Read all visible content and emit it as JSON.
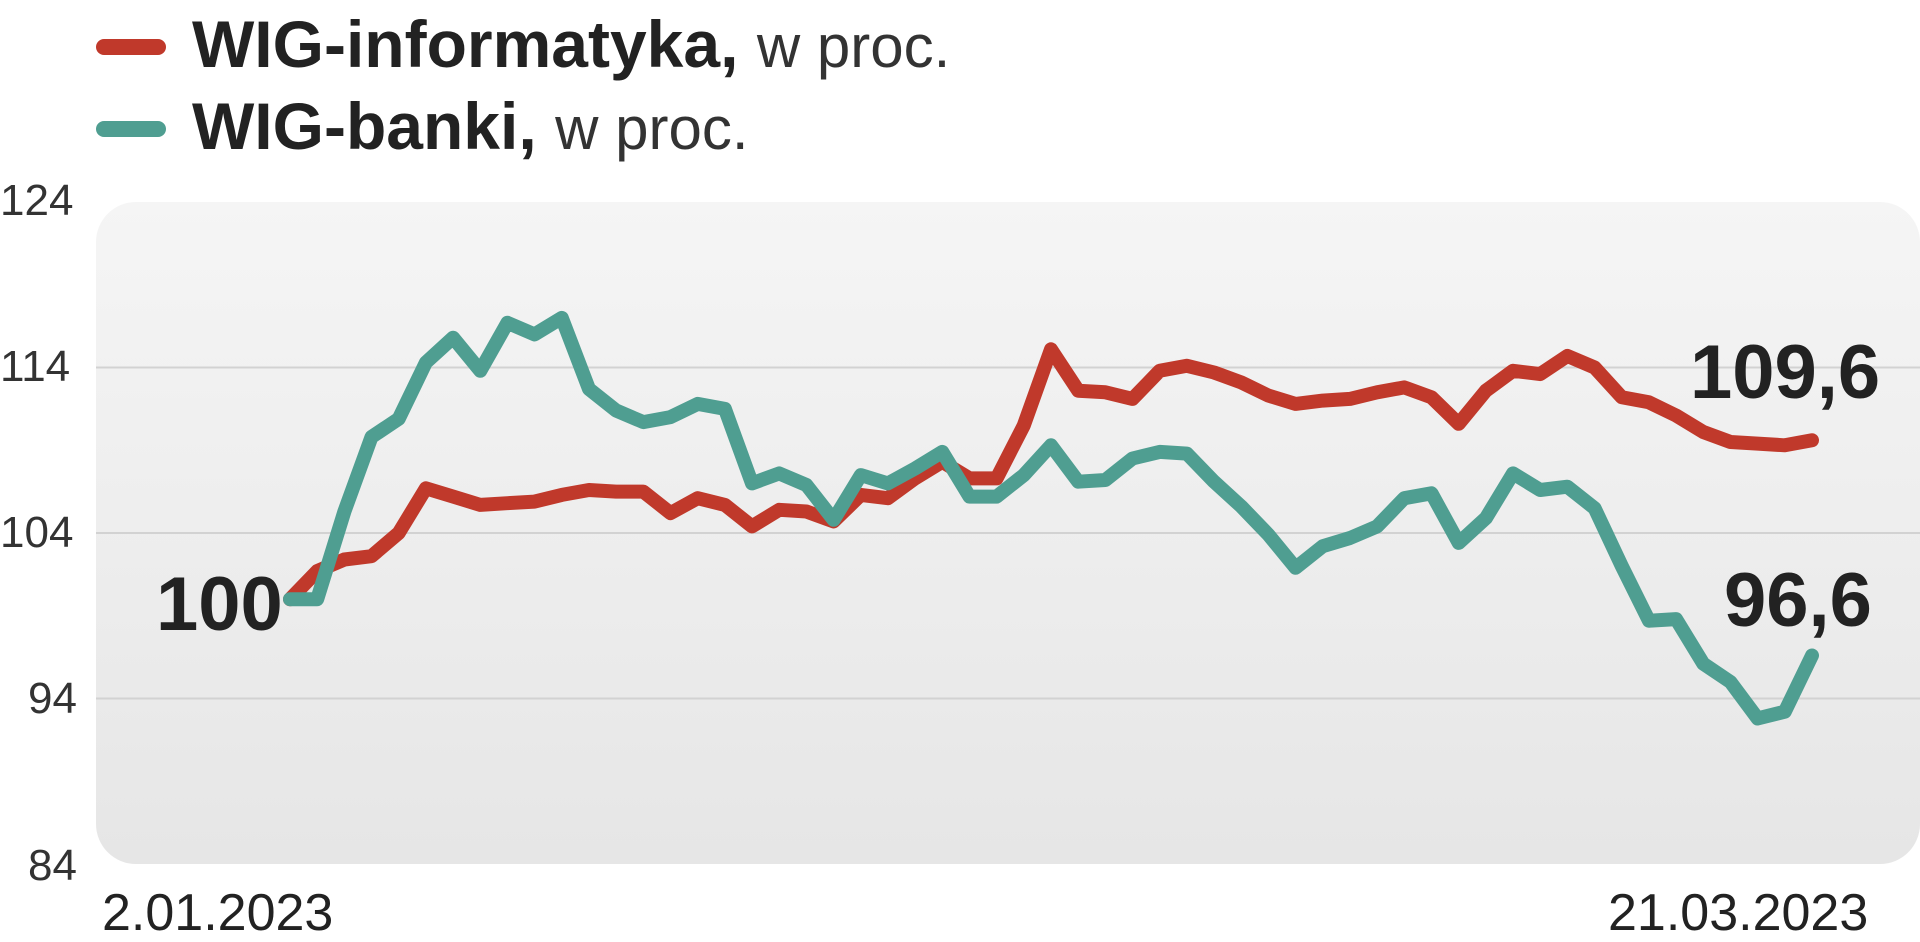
{
  "legend": [
    {
      "title": "WIG-informatyka,",
      "unit": "w proc.",
      "color": "#c0392b"
    },
    {
      "title": "WIG-banki,",
      "unit": "w proc.",
      "color": "#4f9e91"
    }
  ],
  "axis": {
    "y_ticks": [
      "124",
      "114",
      "104",
      "94",
      "84"
    ],
    "x_start": "2.01.2023",
    "x_end": "21.03.2023"
  },
  "annotations": {
    "start": "100",
    "end_informatyka": "109,6",
    "end_banki": "96,6"
  },
  "chart_data": {
    "type": "line",
    "title": "",
    "xlabel": "",
    "ylabel": "",
    "ylim": [
      84,
      124
    ],
    "y_ticks": [
      124,
      114,
      104,
      94,
      84
    ],
    "x_range": [
      "2.01.2023",
      "21.03.2023"
    ],
    "grid": true,
    "legend_position": "top-left",
    "series": [
      {
        "name": "WIG-informatyka",
        "color": "#c0392b",
        "values": [
          100,
          101.7,
          102.4,
          102.6,
          104,
          106.7,
          106.2,
          105.7,
          105.8,
          105.9,
          106.3,
          106.6,
          106.5,
          106.5,
          105.2,
          106.1,
          105.7,
          104.4,
          105.4,
          105.3,
          104.7,
          106.3,
          106.1,
          107.3,
          108.3,
          107.3,
          107.3,
          110.5,
          115.1,
          112.6,
          112.5,
          112.1,
          113.8,
          114.1,
          113.7,
          113.1,
          112.3,
          111.8,
          112,
          112.1,
          112.5,
          112.8,
          112.2,
          110.6,
          112.6,
          113.8,
          113.6,
          114.7,
          114,
          112.2,
          111.9,
          111.1,
          110.1,
          109.5,
          109.4,
          109.3,
          109.6
        ]
      },
      {
        "name": "WIG-banki",
        "color": "#4f9e91",
        "values": [
          100,
          100,
          105.3,
          109.8,
          110.9,
          114.3,
          115.8,
          113.8,
          116.7,
          116,
          117,
          112.7,
          111.4,
          110.7,
          111,
          111.8,
          111.5,
          107,
          107.6,
          106.9,
          104.8,
          107.5,
          107,
          107.9,
          108.9,
          106.2,
          106.2,
          107.5,
          109.3,
          107.1,
          107.2,
          108.5,
          108.9,
          108.8,
          107.1,
          105.6,
          103.9,
          101.9,
          103.2,
          103.7,
          104.4,
          106.1,
          106.4,
          103.4,
          104.9,
          107.6,
          106.6,
          106.8,
          105.5,
          102,
          98.7,
          98.8,
          96.1,
          95,
          92.8,
          93.2,
          96.6
        ]
      }
    ]
  }
}
